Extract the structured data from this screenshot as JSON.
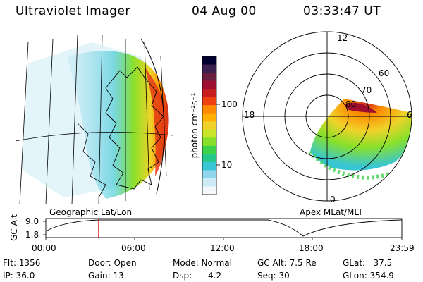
{
  "header": {
    "instrument": "Ultraviolet Imager",
    "date": "04 Aug 00",
    "time": "03:33:47 UT"
  },
  "left_panel": {
    "caption": "Geographic Lat/Lon"
  },
  "right_panel": {
    "caption": "Apex MLat/MLT",
    "mlt_labels": [
      "12",
      "18",
      "6",
      "0"
    ],
    "lat_labels": [
      "60",
      "70",
      "80"
    ]
  },
  "colorbar": {
    "unit_label": "photon cm⁻²s⁻¹",
    "ticks": [
      "100",
      "10"
    ],
    "colors": [
      "#000030",
      "#3a1f4f",
      "#6b1f3f",
      "#9e0f2f",
      "#c81e1e",
      "#ee4010",
      "#ff8a00",
      "#ffb000",
      "#f0d22a",
      "#c7e62a",
      "#88e02a",
      "#3ed24a",
      "#26c88a",
      "#38c6d4",
      "#8fd6ec",
      "#ccebf5",
      "#f4f8fb"
    ]
  },
  "altitude_plot": {
    "ylabel": "GC Alt",
    "yticks": [
      "9.0",
      "1.8"
    ],
    "xticks": [
      "00:00",
      "06:00",
      "12:00",
      "18:00",
      "23:59"
    ],
    "current_time_hours": 3.563
  },
  "info": {
    "flt": "Flt: 1356",
    "ip": "IP: 36.0",
    "door": "Door: Open",
    "gain": "Gain: 13",
    "mode": "Mode: Normal",
    "dsp": "Dsp:      4.2",
    "gc_alt": "GC Alt: 7.5 Re",
    "seq": "Seq: 30",
    "glat": "GLat:   37.5",
    "glon": "GLon: 354.9"
  }
}
